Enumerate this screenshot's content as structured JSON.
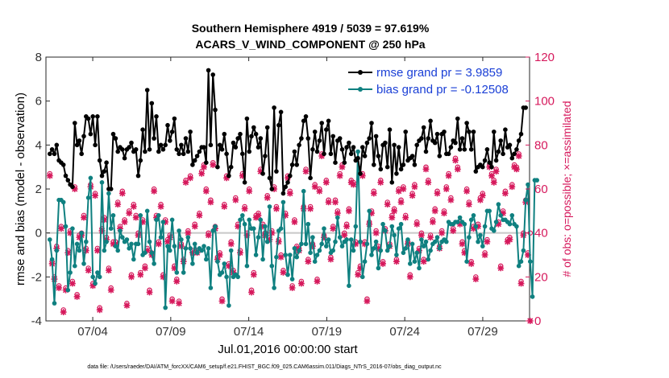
{
  "chart_data": {
    "type": "line",
    "title": "Southern Hemisphere 4919 / 5039 = 97.619%",
    "subtitle": "ACARS_V_WIND_COMPONENT @ 250 hPa",
    "xlabel": "Jul.01,2016 00:00:00 start",
    "ylabel": "rmse and bias (model - observation)",
    "ylabel_right": "# of obs: o=possible; ×=assimilated",
    "footer": "data file: /Users/raeder/DAI/ATM_forcXX/CAM6_setup/f.e21.FHIST_BGC.f09_025.CAM6assim.011/Diags_NTrS_2016-07/obs_diag_output.nc",
    "xlim": [
      1,
      32
    ],
    "ylim": [
      -4,
      8
    ],
    "ylim_right": [
      0,
      120
    ],
    "x_tick_positions": [
      4,
      9,
      14,
      19,
      24,
      29
    ],
    "x_tick_labels": [
      "07/04",
      "07/09",
      "07/14",
      "07/19",
      "07/24",
      "07/29"
    ],
    "y_ticks": [
      -4,
      -2,
      0,
      2,
      4,
      6,
      8
    ],
    "y_ticks_right": [
      0,
      20,
      40,
      60,
      80,
      100,
      120
    ],
    "colors": {
      "rmse": "#000000",
      "bias": "#0f8080",
      "obs": "#d6195c",
      "zero": "#c8c8c8"
    },
    "series": [
      {
        "name": "rmse grand pr = 3.9859",
        "key": "rmse",
        "values": [
          3.6,
          3.8,
          3.6,
          4.0,
          3.3,
          3.2,
          3.1,
          2.6,
          2.4,
          2.2,
          2.1,
          5.0,
          4.0,
          4.2,
          3.6,
          4.4,
          5.3,
          5.2,
          4.5,
          5.3,
          4.0,
          5.3,
          3.3,
          2.6,
          2.8,
          3.2,
          2.0,
          2.0,
          4.5,
          4.3,
          3.7,
          3.9,
          3.8,
          3.4,
          3.8,
          3.9,
          4.1,
          3.7,
          3.8,
          2.6,
          3.3,
          4.7,
          3.7,
          6.5,
          3.8,
          5.9,
          4.3,
          5.3,
          3.7,
          4.0,
          3.8,
          4.0,
          4.9,
          4.2,
          4.6,
          5.2,
          3.8,
          3.6,
          4.0,
          3.6,
          4.3,
          3.7,
          4.6,
          3.1,
          3.3,
          3.5,
          3.7,
          3.9,
          3.9,
          3.2,
          7.4,
          4.0,
          7.2,
          5.6,
          3.0,
          4.0,
          3.8,
          4.5,
          3.6,
          2.6,
          3.0,
          4.1,
          3.9,
          4.3,
          4.5,
          3.6,
          2.3,
          5.2,
          3.7,
          4.4,
          4.8,
          4.5,
          3.9,
          4.3,
          2.7,
          3.5,
          4.8,
          2.5,
          2.0,
          5.7,
          2.8,
          4.9,
          5.5,
          1.8,
          2.1,
          2.3,
          2.6,
          3.1,
          3.7,
          3.1,
          4.0,
          4.3,
          5.1,
          5.3,
          4.3,
          2.5,
          3.8,
          4.6,
          3.7,
          4.2,
          5.0,
          3.6,
          4.7,
          5.1,
          3.6,
          4.4,
          3.2,
          4.2,
          4.3,
          3.8,
          3.2,
          3.9,
          4.1,
          3.6,
          3.9,
          3.3,
          3.4,
          2.7,
          3.9,
          3.5,
          4.1,
          4.3,
          5.0,
          3.1,
          4.4,
          3.5,
          2.9,
          4.0,
          4.1,
          3.0,
          4.7,
          2.3,
          4.0,
          2.7,
          3.9,
          2.9,
          3.1,
          4.6,
          3.3,
          3.4,
          3.5,
          3.1,
          4.0,
          4.2,
          4.3,
          4.8,
          3.7,
          4.3,
          5.1,
          4.2,
          4.1,
          4.5,
          3.5,
          4.5,
          4.6,
          3.6,
          3.6,
          3.9,
          4.2,
          4.1,
          5.2,
          3.8,
          4.3,
          3.8,
          5.0,
          4.6,
          3.8,
          4.6,
          2.8,
          3.0,
          3.1,
          3.0,
          3.3,
          3.8,
          3.2,
          3.0,
          4.6,
          3.3,
          3.7,
          4.2,
          3.6,
          4.7,
          3.9,
          4.0,
          3.4,
          3.6,
          3.8,
          4.2,
          4.5,
          5.7,
          5.7
        ]
      },
      {
        "name": "bias grand pr = -0.12508",
        "key": "bias",
        "values": [
          -0.3,
          -1.2,
          -3.2,
          -0.8,
          1.5,
          1.5,
          1.4,
          0.3,
          -2.6,
          -1.8,
          0.2,
          -1.5,
          -0.5,
          -0.8,
          0.0,
          -1.4,
          -0.4,
          1.6,
          2.5,
          -2.0,
          -2.3,
          -1.8,
          -2.0,
          2.3,
          -0.8,
          -0.4,
          1.8,
          0.2,
          0.8,
          -0.6,
          -0.8,
          0.1,
          -0.2,
          -0.4,
          -0.3,
          -0.7,
          -0.5,
          -1.2,
          -0.5,
          -0.5,
          0.8,
          -1.0,
          -0.9,
          1.0,
          -0.4,
          -0.9,
          -1.4,
          0.6,
          0.8,
          -0.2,
          0.5,
          -3.4,
          -0.6,
          -0.8,
          0.6,
          -0.6,
          -1.8,
          0.1,
          -0.3,
          -1.8,
          -0.7,
          -0.2,
          -0.7,
          -1.4,
          -0.5,
          -0.9,
          -0.7,
          -0.8,
          -0.6,
          -1.2,
          -0.7,
          -2.5,
          0.1,
          0.3,
          -1.3,
          -1.9,
          -1.8,
          -1.4,
          -2.0,
          -3.3,
          -0.8,
          -2.0,
          -1.9,
          -2.0,
          0.6,
          0.8,
          0.4,
          -1.5,
          0.6,
          0.2,
          0.2,
          -1.0,
          -0.2,
          0.6,
          -1.2,
          0.3,
          -0.4,
          1.2,
          -1.5,
          -2.5,
          -1.1,
          0.1,
          0.2,
          1.4,
          -1.0,
          -1.9,
          -1.0,
          -2.1,
          -0.7,
          -1.1,
          -0.8,
          -0.5,
          1.9,
          -0.5,
          0.4,
          -0.9,
          -0.2,
          -1.3,
          -1.0,
          -0.8,
          -0.5,
          0.2,
          -0.6,
          -0.3,
          -0.9,
          -0.8,
          -0.4,
          0.7,
          -0.2,
          -0.6,
          -0.4,
          -0.3,
          -2.4,
          -0.3,
          -0.8,
          0.3,
          3.7,
          -0.4,
          -2.0,
          -1.3,
          -0.5,
          1.0,
          -1.0,
          -0.7,
          -0.4,
          -1.6,
          -0.8,
          0.4,
          0.1,
          -0.8,
          -0.6,
          0.3,
          -0.1,
          -1.0,
          0.2,
          0.4,
          -0.9,
          -0.7,
          -0.3,
          -1.4,
          -0.5,
          -1.3,
          -0.9,
          -1.6,
          -0.3,
          -0.6,
          -0.4,
          -1.2,
          -0.8,
          -0.5,
          -0.4,
          -0.2,
          -0.7,
          -0.4,
          -0.3,
          -0.4,
          0.5,
          0.4,
          0.4,
          0.5,
          0.5,
          0.7,
          0.5,
          0.4,
          -1.3,
          -0.2,
          0.6,
          0.8,
          0.3,
          -0.4,
          -0.1,
          -0.6,
          0.3,
          1.0,
          1.0,
          0.2,
          0.1,
          0.5,
          1.3,
          0.8,
          0.6,
          0.6,
          0.5,
          0.4,
          0.8,
          0.4,
          0.3,
          -1.5,
          -1.3,
          -0.8,
          1.5,
          2.2,
          -1.3,
          -2.9,
          2.4,
          2.4
        ]
      },
      {
        "name": "possible",
        "key": "obs_possible",
        "values": [
          67,
          27,
          20,
          34,
          16,
          43,
          5,
          15,
          32,
          41,
          18,
          61,
          12,
          39,
          40,
          48,
          33,
          24,
          62,
          17,
          58,
          33,
          6,
          42,
          47,
          38,
          24,
          15,
          36,
          36,
          54,
          43,
          59,
          46,
          8,
          50,
          21,
          53,
          48,
          40,
          22,
          46,
          25,
          33,
          14,
          31,
          60,
          48,
          36,
          53,
          21,
          46,
          37,
          39,
          10,
          25,
          19,
          9,
          35,
          28,
          64,
          41,
          66,
          32,
          44,
          32,
          49,
          68,
          71,
          60,
          40,
          55,
          72,
          43,
          29,
          31,
          10,
          53,
          66,
          26,
          36,
          23,
          56,
          44,
          32,
          67,
          52,
          40,
          60,
          14,
          22,
          48,
          49,
          69,
          44,
          40,
          57,
          38,
          41,
          61,
          52,
          37,
          30,
          23,
          49,
          66,
          59,
          16,
          46,
          34,
          33,
          18,
          52,
          69,
          28,
          52,
          35,
          62,
          19,
          60,
          76,
          39,
          64,
          55,
          29,
          43,
          55,
          50,
          67,
          71,
          40,
          44,
          51,
          64,
          63,
          36,
          22,
          25,
          67,
          36,
          10,
          45,
          50,
          59,
          41,
          34,
          64,
          27,
          42,
          54,
          35,
          48,
          51,
          28,
          60,
          55,
          61,
          48,
          36,
          21,
          58,
          62,
          45,
          33,
          40,
          28,
          70,
          64,
          39,
          46,
          51,
          59,
          34,
          41,
          50,
          61,
          67,
          56,
          42,
          74,
          70,
          45,
          36,
          32,
          60,
          54,
          27,
          43,
          20,
          44,
          56,
          58,
          31,
          37,
          71,
          67,
          64,
          69,
          45,
          25,
          50,
          59,
          37,
          38,
          62,
          71,
          70,
          76,
          18,
          40,
          55,
          31,
          40
        ]
      },
      {
        "name": "assimilated",
        "key": "obs_assimilated",
        "values": [
          66,
          26,
          19,
          33,
          15,
          42,
          4,
          14,
          31,
          40,
          17,
          60,
          11,
          38,
          39,
          47,
          32,
          23,
          61,
          16,
          57,
          32,
          5,
          41,
          46,
          37,
          23,
          14,
          35,
          35,
          53,
          42,
          58,
          45,
          7,
          49,
          20,
          52,
          47,
          39,
          21,
          45,
          24,
          32,
          13,
          30,
          59,
          47,
          35,
          52,
          20,
          45,
          36,
          38,
          9,
          24,
          18,
          8,
          34,
          27,
          63,
          40,
          65,
          31,
          43,
          31,
          48,
          67,
          70,
          59,
          39,
          54,
          71,
          42,
          28,
          30,
          9,
          52,
          65,
          25,
          35,
          22,
          55,
          43,
          31,
          66,
          51,
          39,
          59,
          13,
          21,
          47,
          48,
          68,
          43,
          39,
          56,
          37,
          40,
          60,
          51,
          36,
          29,
          22,
          48,
          65,
          58,
          15,
          45,
          33,
          32,
          17,
          51,
          68,
          27,
          51,
          34,
          61,
          18,
          59,
          75,
          38,
          63,
          54,
          28,
          42,
          54,
          49,
          66,
          70,
          39,
          43,
          50,
          63,
          62,
          35,
          21,
          24,
          66,
          35,
          9,
          44,
          49,
          58,
          40,
          33,
          63,
          26,
          41,
          53,
          34,
          47,
          50,
          27,
          59,
          54,
          60,
          47,
          35,
          20,
          57,
          61,
          44,
          32,
          39,
          27,
          69,
          63,
          38,
          45,
          50,
          58,
          33,
          40,
          49,
          60,
          66,
          55,
          41,
          73,
          69,
          44,
          35,
          31,
          59,
          53,
          26,
          42,
          19,
          43,
          55,
          57,
          30,
          36,
          70,
          66,
          63,
          68,
          44,
          24,
          49,
          58,
          36,
          37,
          61,
          70,
          69,
          75,
          17,
          39,
          54,
          30,
          0
        ]
      }
    ]
  }
}
